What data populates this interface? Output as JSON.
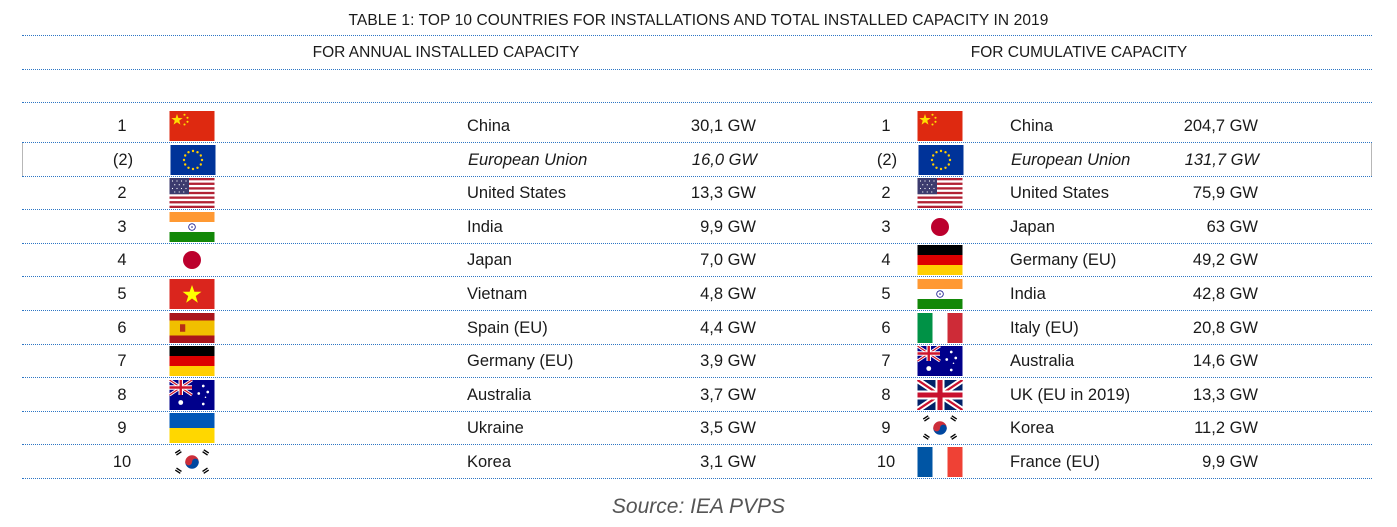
{
  "title": "TABLE 1: TOP 10 COUNTRIES FOR INSTALLATIONS AND TOTAL INSTALLED CAPACITY IN 2019",
  "annual": {
    "header": "FOR ANNUAL INSTALLED CAPACITY",
    "rows": [
      {
        "rank": "1",
        "country": "China",
        "value": "30,1 GW",
        "flag": "china-flag-icon"
      },
      {
        "rank": "(2)",
        "country": "European Union",
        "value": "16,0 GW",
        "flag": "eu-flag-icon"
      },
      {
        "rank": "2",
        "country": "United States",
        "value": "13,3 GW",
        "flag": "usa-flag-icon"
      },
      {
        "rank": "3",
        "country": "India",
        "value": "9,9 GW",
        "flag": "india-flag-icon"
      },
      {
        "rank": "4",
        "country": "Japan",
        "value": "7,0 GW",
        "flag": "japan-flag-icon"
      },
      {
        "rank": "5",
        "country": "Vietnam",
        "value": "4,8 GW",
        "flag": "vietnam-flag-icon"
      },
      {
        "rank": "6",
        "country": "Spain (EU)",
        "value": "4,4 GW",
        "flag": "spain-flag-icon"
      },
      {
        "rank": "7",
        "country": "Germany (EU)",
        "value": "3,9 GW",
        "flag": "germany-flag-icon"
      },
      {
        "rank": "8",
        "country": "Australia",
        "value": "3,7 GW",
        "flag": "australia-flag-icon"
      },
      {
        "rank": "9",
        "country": "Ukraine",
        "value": "3,5 GW",
        "flag": "ukraine-flag-icon"
      },
      {
        "rank": "10",
        "country": "Korea",
        "value": "3,1 GW",
        "flag": "korea-flag-icon"
      }
    ]
  },
  "cumulative": {
    "header": "FOR CUMULATIVE CAPACITY",
    "rows": [
      {
        "rank": "1",
        "country": "China",
        "value": "204,7 GW",
        "flag": "china-flag-icon"
      },
      {
        "rank": "(2)",
        "country": "European Union",
        "value": "131,7 GW",
        "flag": "eu-flag-icon"
      },
      {
        "rank": "2",
        "country": "United States",
        "value": "75,9 GW",
        "flag": "usa-flag-icon"
      },
      {
        "rank": "3",
        "country": "Japan",
        "value": "63 GW",
        "flag": "japan-flag-icon"
      },
      {
        "rank": "4",
        "country": "Germany (EU)",
        "value": "49,2 GW",
        "flag": "germany-flag-icon"
      },
      {
        "rank": "5",
        "country": "India",
        "value": "42,8 GW",
        "flag": "india-flag-icon"
      },
      {
        "rank": "6",
        "country": "Italy (EU)",
        "value": "20,8 GW",
        "flag": "italy-flag-icon"
      },
      {
        "rank": "7",
        "country": "Australia",
        "value": "14,6 GW",
        "flag": "australia-flag-icon"
      },
      {
        "rank": "8",
        "country": "UK (EU in 2019)",
        "value": "13,3 GW",
        "flag": "uk-flag-icon"
      },
      {
        "rank": "9",
        "country": "Korea",
        "value": "11,2 GW",
        "flag": "korea-flag-icon"
      },
      {
        "rank": "10",
        "country": "France (EU)",
        "value": "9,9 GW",
        "flag": "france-flag-icon"
      }
    ]
  },
  "source": "Source: IEA PVPS",
  "colors": {
    "rule": "#2e76c4",
    "text": "#1a1a1a",
    "source": "#555555"
  }
}
